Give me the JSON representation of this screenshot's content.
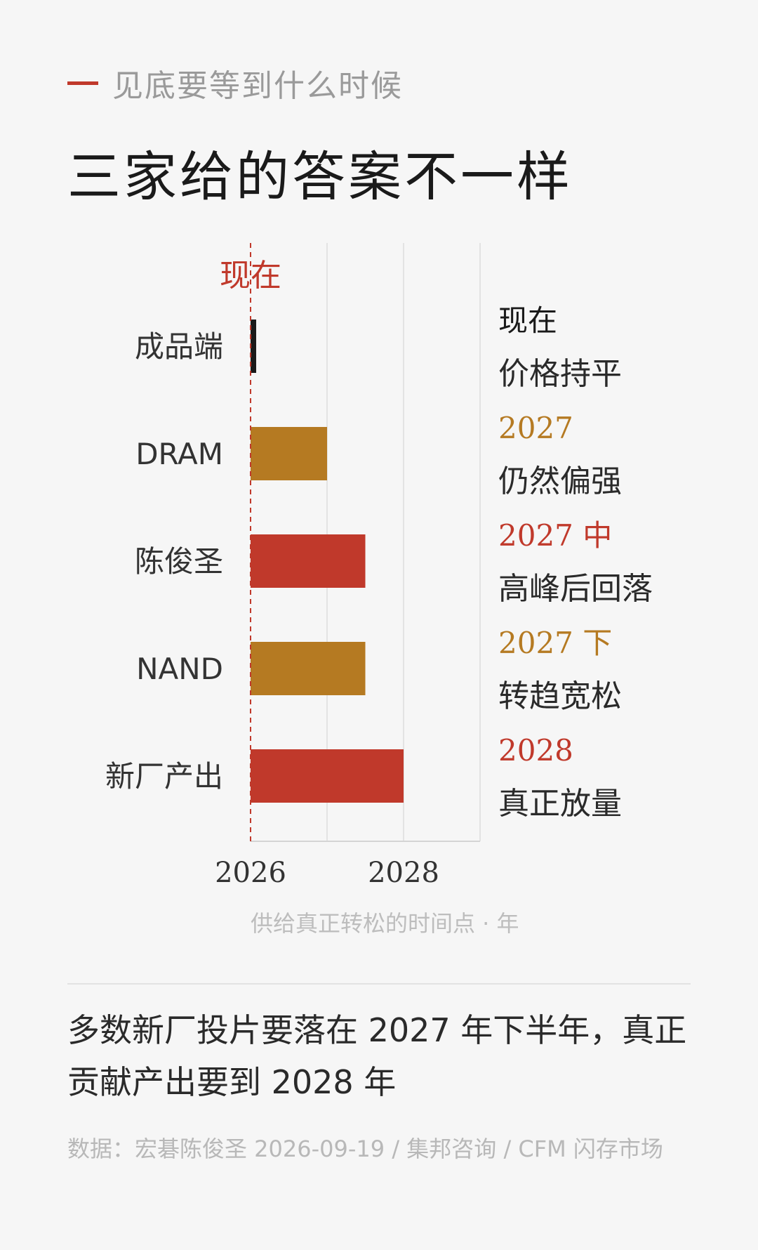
{
  "eyebrow": "见底要等到什么时候",
  "title": "三家给的答案不一样",
  "chart_data": {
    "type": "bar",
    "orientation": "horizontal",
    "categories": [
      "成品端",
      "DRAM",
      "陈俊圣",
      "NAND",
      "新厂产出"
    ],
    "values": [
      2026.05,
      2027.0,
      2027.5,
      2027.5,
      2028.0
    ],
    "bar_colors": [
      "#1a1a1a",
      "#b57a22",
      "#c0392b",
      "#b57a22",
      "#c0392b"
    ],
    "xlim": [
      2026,
      2029
    ],
    "x_ticks": [
      "2026",
      "2028"
    ],
    "xlabel": "供给真正转松的时间点 · 年",
    "now_label": "现在",
    "now_value": 2026,
    "annotations": [
      {
        "year": "现在",
        "text": "价格持平",
        "color": "#1a1a1a"
      },
      {
        "year": "2027",
        "text": "仍然偏强",
        "color": "#b57a22"
      },
      {
        "year": "2027 中",
        "text": "高峰后回落",
        "color": "#c0392b"
      },
      {
        "year": "2027 下",
        "text": "转趋宽松",
        "color": "#b57a22"
      },
      {
        "year": "2028",
        "text": "真正放量",
        "color": "#c0392b"
      }
    ],
    "grid": true
  },
  "summary": "多数新厂投片要落在 2027 年下半年，真正贡献产出要到 2028 年",
  "source": "数据：宏碁陈俊圣 2026-09-19 / 集邦咨询 / CFM 闪存市场"
}
